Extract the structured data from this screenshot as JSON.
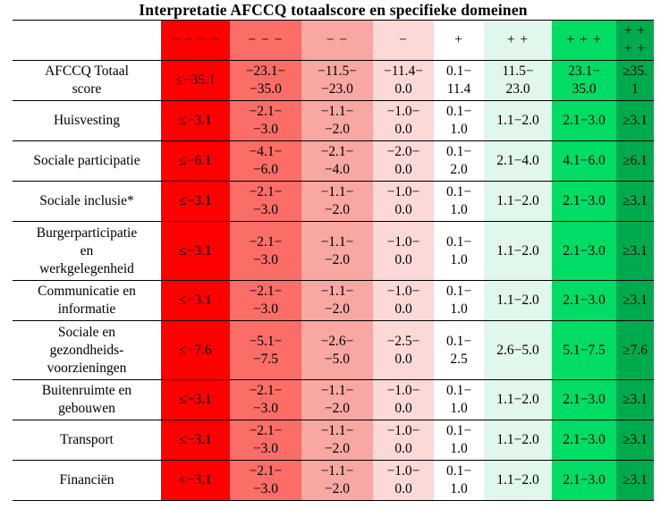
{
  "title": "Interpretatie AFCCQ totaalscore en specifieke domeinen",
  "table": {
    "column_colors": [
      "#fe0000",
      "#fb6d67",
      "#f9a7a2",
      "#fcd9d6",
      "#ffffff",
      "#e2f7eb",
      "#00dc64",
      "#00ab4d"
    ],
    "header": [
      "− − − −",
      "− − −",
      "− −",
      "−",
      "+",
      "+ +",
      "+ + +",
      "+ +\n+ +"
    ],
    "rows": [
      {
        "label": "AFCCQ Totaal\nscore",
        "cells": [
          "≤−35.1",
          "−23.1−\n−35.0",
          "−11.5−\n−23.0",
          "−11.4−\n0.0",
          "0.1−\n11.4",
          "11.5−\n23.0",
          "23.1−\n35.0",
          "≥35.\n1"
        ]
      },
      {
        "label": "Huisvesting",
        "cells": [
          "≤−3.1",
          "−2.1−\n−3.0",
          "−1.1−\n−2.0",
          "−1.0−\n0.0",
          "0.1−\n1.0",
          "1.1−2.0",
          "2.1−3.0",
          "≥3.1"
        ]
      },
      {
        "label": "Sociale participatie",
        "cells": [
          "≤−6.1",
          "−4.1−\n−6.0",
          "−2.1−\n−4.0",
          "−2.0−\n0.0",
          "0.1−\n2.0",
          "2.1−4.0",
          "4.1−6.0",
          "≥6.1"
        ]
      },
      {
        "label": "Sociale inclusie*",
        "cells": [
          "≤−3.1",
          "−2.1−\n−3.0",
          "−1.1−\n−2.0",
          "−1.0−\n0.0",
          "0.1−\n1.0",
          "1.1−2.0",
          "2.1−3.0",
          "≥3.1"
        ]
      },
      {
        "label": "Burgerparticipatie\nen\nwerkgelegenheid",
        "cells": [
          "≤−3.1",
          "−2.1−\n−3.0",
          "−1.1−\n−2.0",
          "−1.0−\n0.0",
          "0.1−\n1.0",
          "1.1−2.0",
          "2.1−3.0",
          "≥3.1"
        ]
      },
      {
        "label": "Communicatie en\ninformatie",
        "cells": [
          "≤−3.1",
          "−2.1−\n−3.0",
          "−1.1−\n−2.0",
          "−1.0−\n0.0",
          "0.1−\n1.0",
          "1.1−2.0",
          "2.1−3.0",
          "≥3.1"
        ]
      },
      {
        "label": "Sociale en\ngezondheids-\nvoorzieningen",
        "cells": [
          "≤−7.6",
          "−5.1−\n−7.5",
          "−2.6−\n−5.0",
          "−2.5−\n0.0",
          "0.1−\n2.5",
          "2.6−5.0",
          "5.1−7.5",
          "≥7.6"
        ]
      },
      {
        "label": "Buitenruimte en\ngebouwen",
        "cells": [
          "≤−3.1",
          "−2.1−\n−3.0",
          "−1.1−\n−2.0",
          "−1.0−\n0.0",
          "0.1−\n1.0",
          "1.1−2.0",
          "2.1−3.0",
          "≥3.1"
        ]
      },
      {
        "label": "Transport",
        "cells": [
          "≤−3.1",
          "−2.1−\n−3.0",
          "−1.1−\n−2.0",
          "−1.0−\n0.0",
          "0.1−\n1.0",
          "1.1−2.0",
          "2.1−3.0",
          "≥3.1"
        ]
      },
      {
        "label": "Financiën",
        "cells": [
          "≤−3.1",
          "−2.1−\n−3.0",
          "−1.1−\n−2.0",
          "−1.0−\n0.0",
          "0.1−\n1.0",
          "1.1−2.0",
          "2.1−3.0",
          "≥3.1"
        ]
      }
    ]
  }
}
